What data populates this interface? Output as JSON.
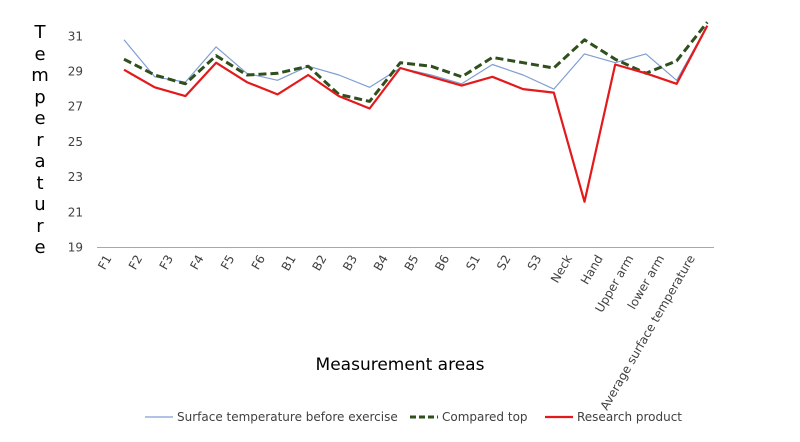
{
  "chart_data": {
    "type": "line",
    "title": "",
    "xlabel": "Measurement areas",
    "ylabel": "Temperature",
    "ylim": [
      19,
      32
    ],
    "yticks": [
      19,
      21,
      23,
      25,
      27,
      29,
      31
    ],
    "grid": false,
    "legend_position": "bottom",
    "categories": [
      "F1",
      "F2",
      "F3",
      "F4",
      "F5",
      "F6",
      "B1",
      "B2",
      "B3",
      "B4",
      "B5",
      "B6",
      "S1",
      "S2",
      "S3",
      "Neck",
      "Hand",
      "Upper arm",
      "lower arm",
      "Average surface temperature"
    ],
    "series": [
      {
        "name": "Surface temperature before exercise",
        "color": "#7f9fd0",
        "style": "solid",
        "values": [
          30.8,
          28.7,
          28.4,
          30.4,
          28.9,
          28.5,
          29.3,
          28.8,
          28.1,
          29.2,
          28.8,
          28.3,
          29.4,
          28.8,
          28.0,
          30.0,
          29.5,
          30.0,
          28.5,
          31.6
        ]
      },
      {
        "name": "Compared top",
        "color": "#2f4f1c",
        "style": "dashed",
        "values": [
          29.7,
          28.8,
          28.3,
          29.9,
          28.8,
          28.9,
          29.3,
          27.7,
          27.3,
          29.5,
          29.3,
          28.7,
          29.8,
          29.5,
          29.2,
          30.8,
          29.7,
          28.9,
          29.6,
          31.8
        ]
      },
      {
        "name": "Research product",
        "color": "#e31a1c",
        "style": "solid",
        "values": [
          29.1,
          28.1,
          27.6,
          29.5,
          28.4,
          27.7,
          28.8,
          27.6,
          26.9,
          29.2,
          28.7,
          28.2,
          28.7,
          28.0,
          27.8,
          21.6,
          29.4,
          28.9,
          28.3,
          31.6
        ]
      }
    ]
  }
}
